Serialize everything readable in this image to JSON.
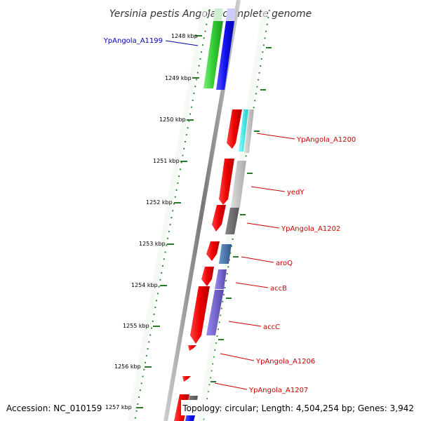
{
  "title": "Yersinia pestis Angola, complete genome",
  "footer": {
    "accession": "Accession: NC_010159",
    "summary": "Topology: circular; Length: 4,504,254 bp; Genes: 3,942"
  },
  "ticks": [
    "1248 kbp",
    "1249 kbp",
    "1250 kbp",
    "1251 kbp",
    "1252 kbp",
    "1253 kbp",
    "1254 kbp",
    "1255 kbp",
    "1256 kbp",
    "1257 kbp"
  ],
  "genes": [
    {
      "name": "YpAngola_A1199",
      "color": "#0000aa"
    },
    {
      "name": "YpAngola_A1200",
      "color": "#cc0000"
    },
    {
      "name": "yedY",
      "color": "#cc0000"
    },
    {
      "name": "YpAngola_A1202",
      "color": "#cc0000"
    },
    {
      "name": "aroQ",
      "color": "#cc0000"
    },
    {
      "name": "accB",
      "color": "#cc0000"
    },
    {
      "name": "accC",
      "color": "#cc0000"
    },
    {
      "name": "YpAngola_A1206",
      "color": "#cc0000"
    },
    {
      "name": "YpAngola_A1207",
      "color": "#cc0000"
    }
  ],
  "colors": {
    "backbone": "#888888",
    "tick": "#2a7a2a",
    "dots": "#2a8a2a",
    "cds_red": "#ee1111",
    "cds_blue": "#1111ee",
    "cds_green": "#33cc33",
    "cyan": "#33dddd",
    "light_gray": "#bbbbbb",
    "dark_gray": "#666666",
    "steel_blue": "#4477aa",
    "purple": "#7766cc"
  }
}
